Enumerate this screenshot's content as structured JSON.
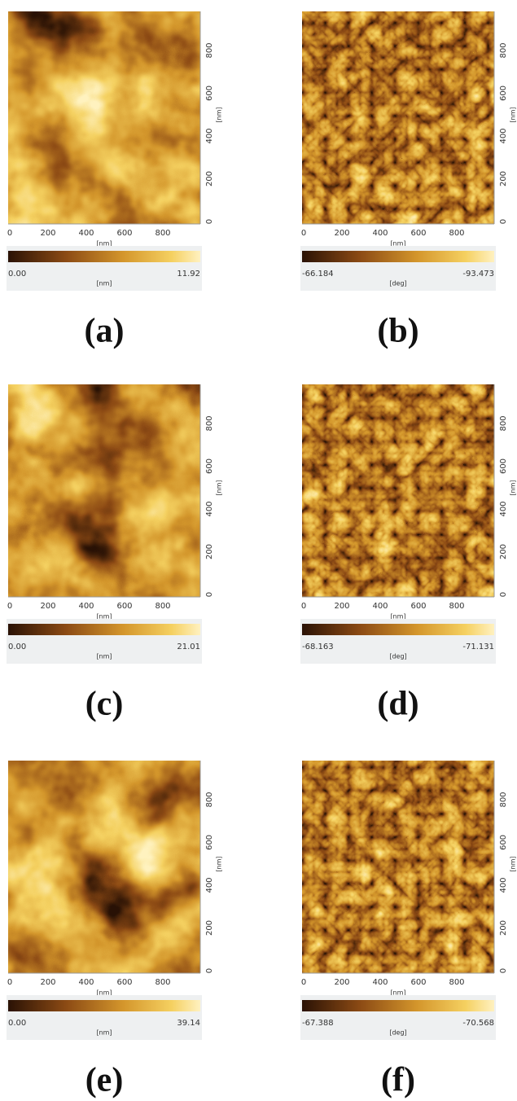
{
  "panels": [
    {
      "caption": "(a)",
      "kind": "height",
      "x_ticks": [
        "0",
        "200",
        "400",
        "600",
        "800"
      ],
      "x_unit": "[nm]",
      "y_ticks": [
        "0",
        "200",
        "400",
        "600",
        "800"
      ],
      "y_unit": "[nm]",
      "scale_min": "0.00",
      "scale_max": "11.92",
      "scale_unit": "[nm]"
    },
    {
      "caption": "(b)",
      "kind": "phase",
      "x_ticks": [
        "0",
        "200",
        "400",
        "600",
        "800"
      ],
      "x_unit": "[nm]",
      "y_ticks": [
        "0",
        "200",
        "400",
        "600",
        "800"
      ],
      "y_unit": "[nm]",
      "scale_min": "-66.184",
      "scale_max": "-93.473",
      "scale_unit": "[deg]"
    },
    {
      "caption": "(c)",
      "kind": "height",
      "x_ticks": [
        "0",
        "200",
        "400",
        "600",
        "800"
      ],
      "x_unit": "[nm]",
      "y_ticks": [
        "0",
        "200",
        "400",
        "600",
        "800"
      ],
      "y_unit": "[nm]",
      "scale_min": "0.00",
      "scale_max": "21.01",
      "scale_unit": "[nm]"
    },
    {
      "caption": "(d)",
      "kind": "phase",
      "x_ticks": [
        "0",
        "200",
        "400",
        "600",
        "800"
      ],
      "x_unit": "[nm]",
      "y_ticks": [
        "0",
        "200",
        "400",
        "600",
        "800"
      ],
      "y_unit": "[nm]",
      "scale_min": "-68.163",
      "scale_max": "-71.131",
      "scale_unit": "[deg]"
    },
    {
      "caption": "(e)",
      "kind": "height",
      "x_ticks": [
        "0",
        "200",
        "400",
        "600",
        "800"
      ],
      "x_unit": "[nm]",
      "y_ticks": [
        "0",
        "200",
        "400",
        "600",
        "800"
      ],
      "y_unit": "[nm]",
      "scale_min": "0.00",
      "scale_max": "39.14",
      "scale_unit": "[nm]"
    },
    {
      "caption": "(f)",
      "kind": "phase",
      "x_ticks": [
        "0",
        "200",
        "400",
        "600",
        "800"
      ],
      "x_unit": "[nm]",
      "y_ticks": [
        "0",
        "200",
        "400",
        "600",
        "800"
      ],
      "y_unit": "[nm]",
      "scale_min": "-67.388",
      "scale_max": "-70.568",
      "scale_unit": "[deg]"
    }
  ]
}
